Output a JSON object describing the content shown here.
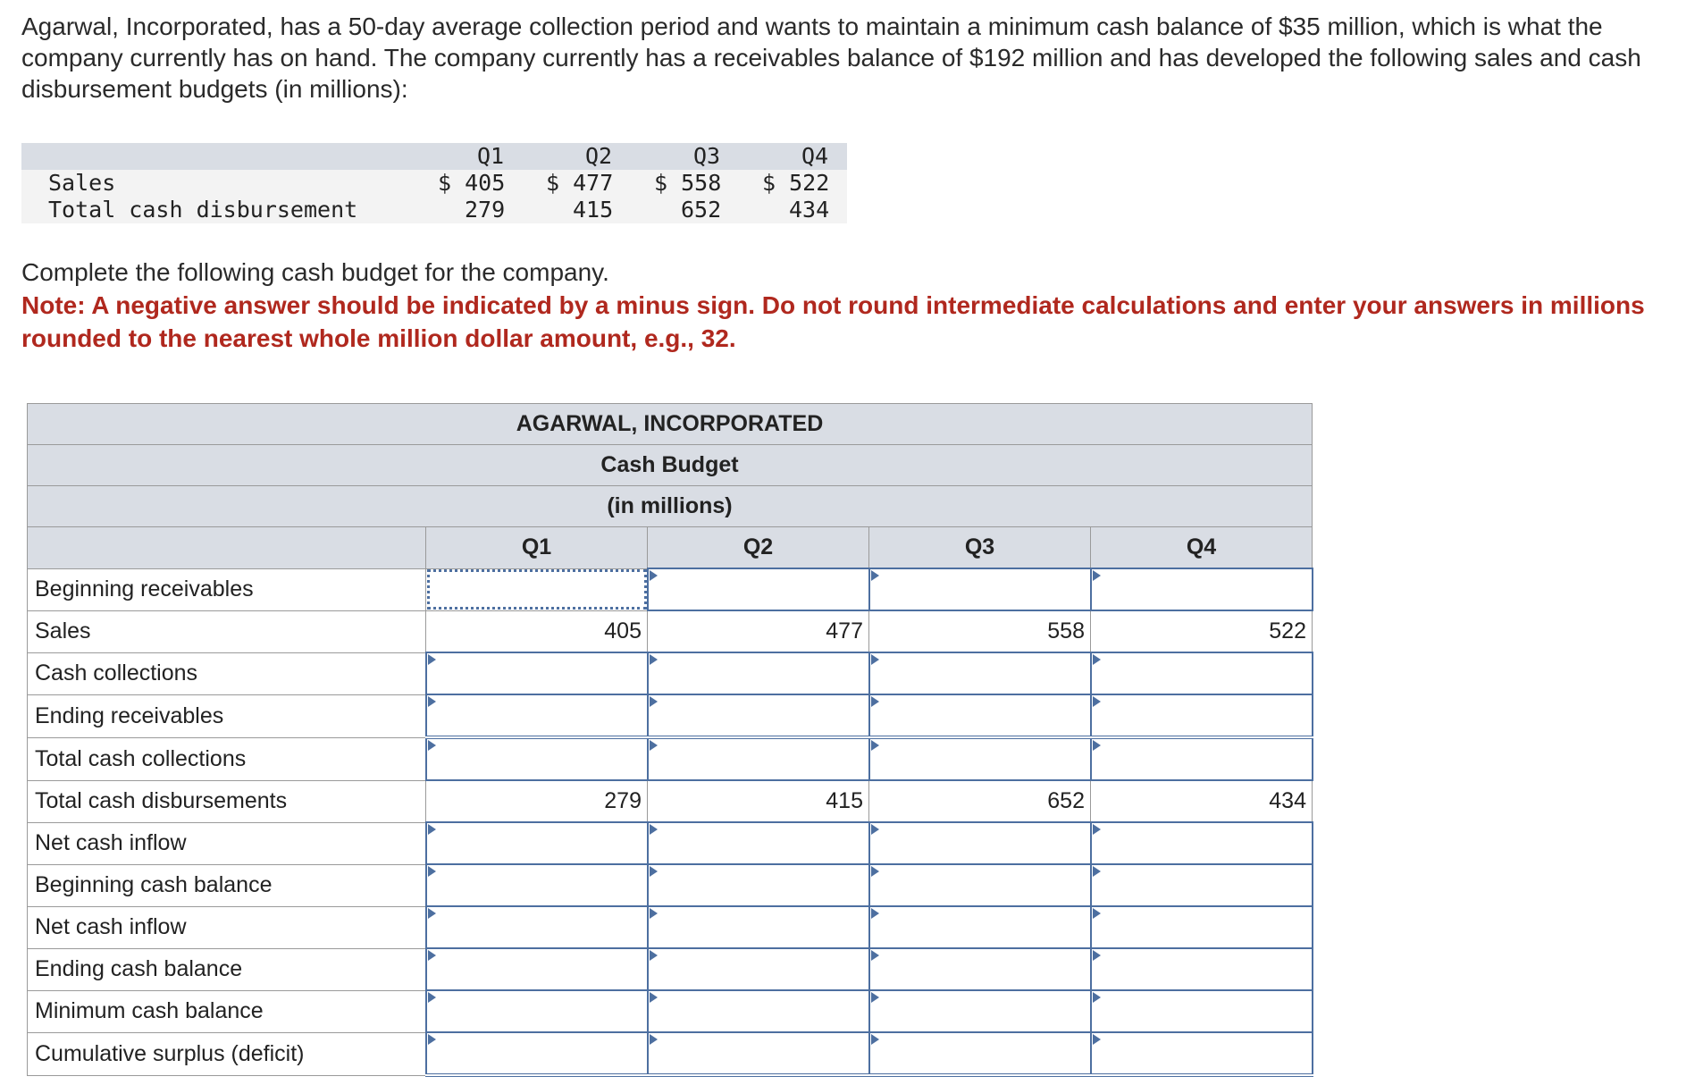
{
  "intro": "Agarwal, Incorporated, has a 50-day average collection period and wants to maintain a minimum cash balance of $35 million, which is what the company currently has on hand. The company currently has a receivables balance of $192 million and has developed the following sales and cash disbursement budgets (in millions):",
  "given": {
    "quarters": [
      "Q1",
      "Q2",
      "Q3",
      "Q4"
    ],
    "sales_label": "Sales",
    "sales": [
      "$ 405",
      "$ 477",
      "$ 558",
      "$ 522"
    ],
    "disb_label": "Total cash disbursement",
    "disb": [
      "279",
      "415",
      "652",
      "434"
    ]
  },
  "instructions": {
    "line1": "Complete the following cash budget for the company.",
    "note": "Note: A negative answer should be indicated by a minus sign. Do not round intermediate calculations and enter your answers in millions rounded to the nearest whole million dollar amount, e.g., 32."
  },
  "budget": {
    "company": "AGARWAL, INCORPORATED",
    "title": "Cash Budget",
    "units": "(in millions)",
    "quarters": [
      "Q1",
      "Q2",
      "Q3",
      "Q4"
    ],
    "rows": {
      "beginning_receivables": "Beginning receivables",
      "sales": "Sales",
      "cash_collections": "Cash collections",
      "ending_receivables": "Ending receivables",
      "total_cash_collections": "Total cash collections",
      "total_cash_disbursements": "Total cash disbursements",
      "net_cash_inflow": "Net cash inflow",
      "beginning_cash_balance": "Beginning cash balance",
      "net_cash_inflow_2": "Net cash inflow",
      "ending_cash_balance": "Ending cash balance",
      "minimum_cash_balance": "Minimum cash balance",
      "cumulative_surplus": "Cumulative surplus (deficit)"
    },
    "sales_values": [
      "405",
      "477",
      "558",
      "522"
    ],
    "disb_values": [
      "279",
      "415",
      "652",
      "434"
    ]
  }
}
